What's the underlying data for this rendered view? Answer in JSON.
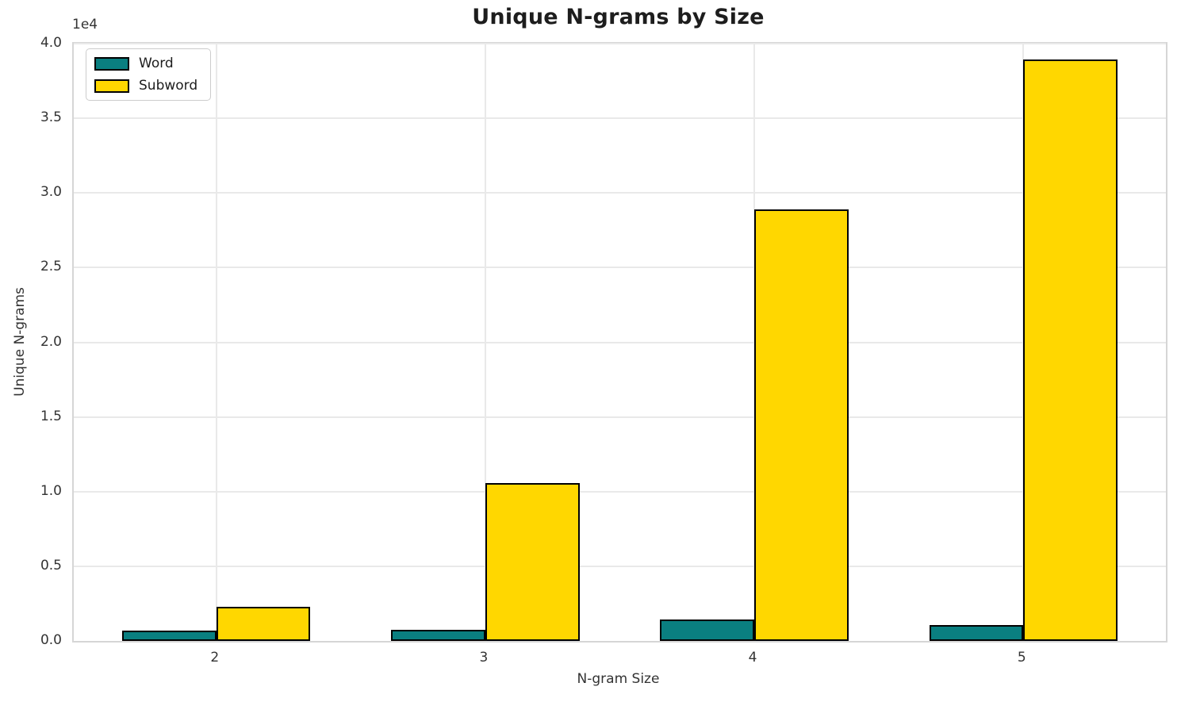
{
  "title": "Unique N-grams by Size",
  "axes": {
    "xlabel": "N-gram Size",
    "ylabel": "Unique N-grams",
    "offset_text": "1e4"
  },
  "legend": {
    "items": [
      {
        "label": "Word",
        "color": "#0a7f80"
      },
      {
        "label": "Subword",
        "color": "#ffd700"
      }
    ]
  },
  "chart_data": {
    "type": "bar",
    "title": "Unique N-grams by Size",
    "xlabel": "N-gram Size",
    "ylabel": "Unique N-grams",
    "categories": [
      "2",
      "3",
      "4",
      "5"
    ],
    "category_values": [
      2,
      3,
      4,
      5
    ],
    "series": [
      {
        "name": "Word",
        "color": "#0a7f80",
        "values": [
          680,
          730,
          1450,
          1060
        ]
      },
      {
        "name": "Subword",
        "color": "#ffd700",
        "values": [
          2300,
          10550,
          28900,
          38950
        ]
      }
    ],
    "bar_edge_color": "#000000",
    "bar_width_data_units": 0.35,
    "ylim": [
      0,
      40000
    ],
    "xlim": [
      1.47,
      5.53
    ],
    "y_tick_step": 5000,
    "y_tick_labels": [
      "0.0",
      "0.5",
      "1.0",
      "1.5",
      "2.0",
      "2.5",
      "3.0",
      "3.5",
      "4.0"
    ],
    "y_offset_text": "1e4",
    "grid": true,
    "legend_position": "upper left"
  }
}
